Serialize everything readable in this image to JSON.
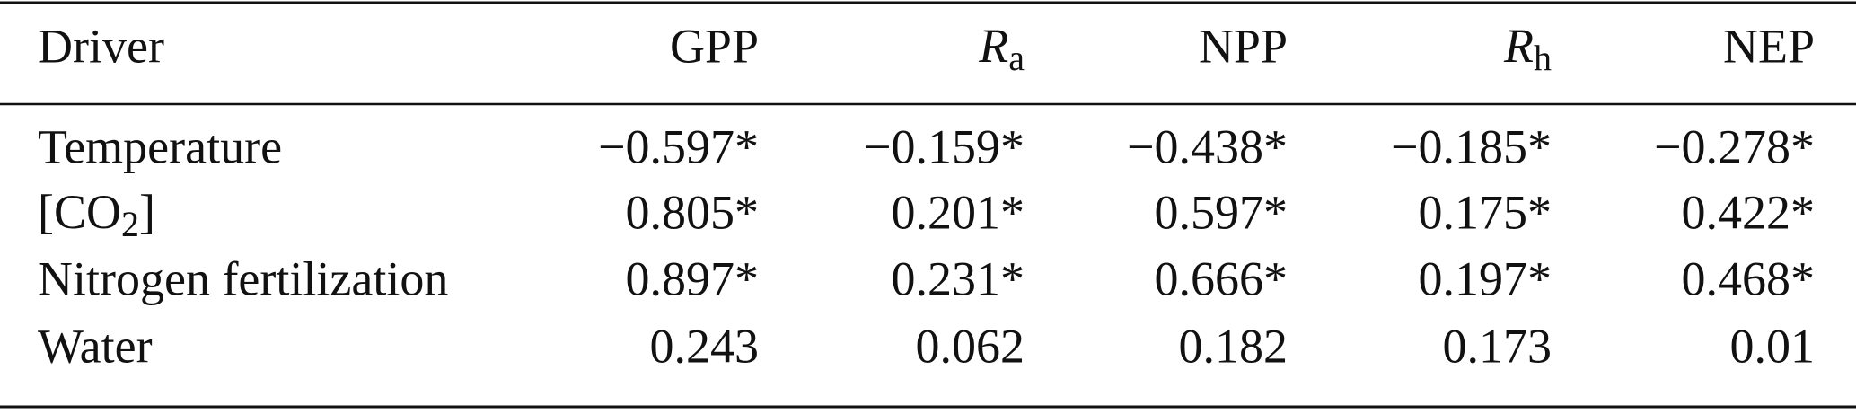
{
  "table": {
    "header": [
      "Driver",
      "GPP",
      {
        "symbol": "R",
        "subscript": "a"
      },
      "NPP",
      {
        "symbol": "R",
        "subscript": "h"
      },
      "NEP"
    ],
    "rows": [
      {
        "driver": "Temperature",
        "values": [
          "−0.597*",
          "−0.159*",
          "−0.438*",
          "−0.185*",
          "−0.278*"
        ]
      },
      {
        "driver": {
          "text": "[CO",
          "subscript": "2",
          "after": "]"
        },
        "values": [
          "0.805*",
          "0.201*",
          "0.597*",
          "0.175*",
          "0.422*"
        ]
      },
      {
        "driver": "Nitrogen fertilization",
        "values": [
          "0.897*",
          "0.231*",
          "0.666*",
          "0.197*",
          "0.468*"
        ]
      },
      {
        "driver": "Water",
        "values": [
          "0.243",
          "0.062",
          "0.182",
          "0.173",
          "0.01"
        ]
      }
    ]
  }
}
